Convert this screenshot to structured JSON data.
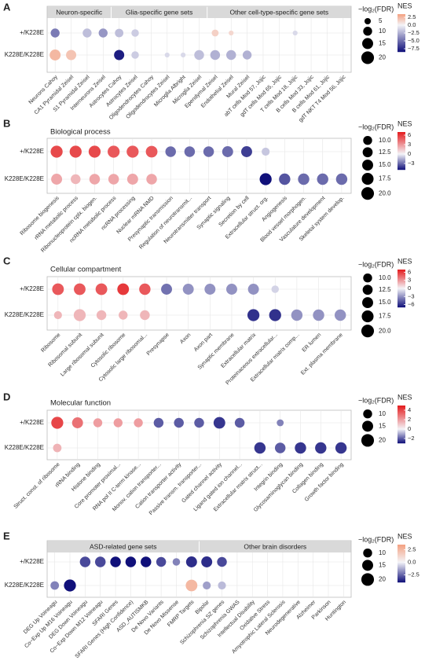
{
  "chart_data": [
    {
      "type": "dot",
      "panel": "A",
      "groups": [
        {
          "label": "Neuron-specific",
          "span": 4
        },
        {
          "label": "Glia-specific gene sets",
          "span": 6
        },
        {
          "label": "Other cell-type-specific gene sets",
          "span": 9
        }
      ],
      "rows": [
        "+/K228E",
        "K228E/K228E"
      ],
      "categories": [
        "Neurons Cahoy",
        "CA1 Pyramidal Zeisel",
        "S1 Pyramidal Zeisel",
        "Interneurons Zeisel",
        "Astrocytes Cahoy",
        "Astrocytes Zeisel",
        "Oligodendrocytes Cahoy",
        "Oligodendrocytes Zeisel",
        "Microglia Albright",
        "Microglia Zeisel",
        "Ependymal Zeisel",
        "Endothelial Zeisel",
        "Mural Zeisel",
        "abT cells Mod 57, Jojic",
        "gdT cells Mod 65, Jojic",
        "T cells Mod 18, Jojic",
        "B cells Mod 33, Jojic",
        "B cells Mod 61, Jojic",
        "gdT NKT T4 Mod 56, Jojic"
      ],
      "nes": [
        [
          -4.5,
          null,
          -2,
          -3.5,
          -2,
          -1.5,
          null,
          null,
          null,
          null,
          1.5,
          1.2,
          null,
          null,
          null,
          -1,
          null,
          null,
          null
        ],
        [
          2.5,
          2,
          null,
          null,
          -8,
          -1.5,
          null,
          -1,
          -1,
          -2,
          -2.5,
          -2.5,
          -2.5,
          null,
          null,
          null,
          null,
          null,
          null
        ]
      ],
      "size": [
        [
          10,
          null,
          10,
          10,
          9,
          7,
          null,
          null,
          null,
          null,
          6,
          3,
          null,
          null,
          null,
          3,
          null,
          null,
          null
        ],
        [
          15,
          13,
          null,
          null,
          13,
          7,
          null,
          3,
          3,
          12,
          12,
          12,
          10,
          null,
          null,
          null,
          null,
          null,
          null
        ]
      ],
      "size_title": "−log₂(FDR)",
      "size_ticks": [
        5,
        10,
        15,
        20
      ],
      "color_title": "NES",
      "clim": [
        -8.5,
        3.5
      ],
      "color_ticks": [
        {
          "value": 2.5,
          "label": "2.5"
        },
        {
          "value": 0,
          "label": "0.0"
        },
        {
          "value": -2.5,
          "label": "−2.5"
        },
        {
          "value": -5,
          "label": "−5.0"
        },
        {
          "value": -7.5,
          "label": "−7.5"
        }
      ],
      "colors": {
        "low": "#10107a",
        "mid": "#f4f4f8",
        "high": "#f4a080"
      }
    },
    {
      "type": "dot",
      "panel": "B",
      "title": "Biological process",
      "rows": [
        "+/K228E",
        "K228E/K228E"
      ],
      "categories": [
        "Ribosome biogenesis",
        "rRNA metabolic process",
        "Ribonucleoprotein cplx. biogen.",
        "ncRNA metabolic process",
        "ncRNA processing",
        "Nuclear mRNA NMD",
        "Presynaptic transmission",
        "Regulation of neurotransmit...",
        "Neurotransmitter transport",
        "Synaptic signaling",
        "Secretion by cell",
        "Extracellular struct. org.",
        "Angiogenesis",
        "Blood vessel morphogen.",
        "Vasculature development",
        "Skeletal system develop."
      ],
      "nes": [
        [
          5.5,
          5.5,
          5.5,
          5,
          5,
          5,
          -3,
          -3,
          -3,
          -3,
          -4,
          -1,
          null,
          null,
          null,
          null
        ],
        [
          2.5,
          2,
          2.5,
          2.5,
          2.5,
          2.5,
          null,
          null,
          null,
          null,
          null,
          -5,
          -3.5,
          -3,
          -3,
          -3
        ]
      ],
      "size": [
        [
          18,
          18,
          18,
          18,
          18,
          17,
          14,
          14,
          14,
          15,
          15,
          8,
          null,
          null,
          null,
          null
        ],
        [
          15,
          12,
          14,
          14,
          15,
          14,
          null,
          null,
          null,
          null,
          null,
          18,
          16,
          16,
          16,
          16
        ]
      ],
      "size_title": "−log₂(FDR)",
      "size_ticks": [
        {
          "value": 10,
          "label": "10.0"
        },
        12.5,
        {
          "value": 15,
          "label": "15.0"
        },
        17.5,
        {
          "value": 20,
          "label": "20.0"
        }
      ],
      "color_title": "NES",
      "clim": [
        -5,
        7
      ],
      "color_ticks": [
        6,
        3,
        0,
        {
          "value": -3,
          "label": "−3"
        }
      ],
      "colors": {
        "low": "#10107a",
        "mid": "#f4f4f8",
        "high": "#e41a1c"
      }
    },
    {
      "type": "dot",
      "panel": "C",
      "title": "Cellular compartment",
      "rows": [
        "+/K228E",
        "K228E/K228E"
      ],
      "categories": [
        "Ribosome",
        "Ribosomal subunit",
        "Large ribosomal subunit",
        "Cytosolic ribosome",
        "Cytosolic large ribosomal...",
        "Presynapse",
        "Axon",
        "Axon part",
        "Synaptic membrane",
        "Extracellular matrix",
        "Proteinaceous extracellular...",
        "Extracellular matrix comp...",
        "ER lumen",
        "Ext. plasma membrane"
      ],
      "nes": [
        [
          5,
          5,
          5,
          6,
          5,
          -4,
          -3,
          -3,
          -3,
          -3,
          -1,
          null,
          null,
          null
        ],
        [
          2,
          2,
          2,
          2,
          2,
          null,
          null,
          null,
          null,
          -6,
          -6,
          -3,
          -3,
          -3
        ]
      ],
      "size": [
        [
          17,
          17,
          17,
          17,
          16,
          15,
          15,
          15,
          15,
          15,
          7,
          null,
          null,
          null
        ],
        [
          8,
          18,
          12,
          10,
          12,
          null,
          null,
          null,
          null,
          18,
          18,
          16,
          16,
          16
        ]
      ],
      "size_title": "−log₂(FDR)",
      "size_ticks": [
        {
          "value": 10,
          "label": "10.0"
        },
        12.5,
        {
          "value": 15,
          "label": "15.0"
        },
        17.5,
        {
          "value": 20,
          "label": "20.0"
        }
      ],
      "color_title": "NES",
      "clim": [
        -7,
        7
      ],
      "color_ticks": [
        6,
        3,
        0,
        {
          "value": -3,
          "label": "−3"
        },
        {
          "value": -6,
          "label": "−6"
        }
      ],
      "colors": {
        "low": "#10107a",
        "mid": "#f4f4f8",
        "high": "#e41a1c"
      }
    },
    {
      "type": "dot",
      "panel": "D",
      "title": "Molecular function",
      "rows": [
        "+/K228E",
        "K228E/K228E"
      ],
      "categories": [
        "Struct. const. of ribosome",
        "rRNA binding",
        "Histone binding",
        "Core promoter proximal...",
        "RNA pol II C-term kinase...",
        "Monov. cation transporter...",
        "Cation transporter activity",
        "Passive transm. transporter...",
        "Gated channel activity",
        "Ligand gated ion channel...",
        "Extracellular matrix struct...",
        "Integrin binding",
        "Glycosaminoglycan binding",
        "Collagen binding",
        "Growth factor binding"
      ],
      "nes": [
        [
          4,
          3,
          2,
          2,
          2,
          -2,
          -2,
          -2,
          -2.5,
          -2,
          null,
          -1.5,
          null,
          null,
          null
        ],
        [
          1.5,
          null,
          null,
          null,
          null,
          null,
          null,
          null,
          null,
          null,
          -2.5,
          -2,
          -2.5,
          -2.5,
          -2.5
        ]
      ],
      "size": [
        [
          18,
          15,
          10,
          10,
          10,
          12,
          12,
          12,
          17,
          12,
          null,
          6,
          null,
          null,
          null
        ],
        [
          9,
          null,
          null,
          null,
          null,
          null,
          null,
          null,
          null,
          null,
          16,
          14,
          16,
          16,
          16
        ]
      ],
      "size_title": "−log₂(FDR)",
      "size_ticks": [
        10,
        15,
        20
      ],
      "color_title": "NES",
      "clim": [
        -3,
        5
      ],
      "color_ticks": [
        4,
        2,
        0,
        {
          "value": -2,
          "label": "−2"
        }
      ],
      "colors": {
        "low": "#10107a",
        "mid": "#f4f4f8",
        "high": "#e41a1c"
      }
    },
    {
      "type": "dot",
      "panel": "E",
      "groups": [
        {
          "label": "ASD-related gene sets",
          "span": 10
        },
        {
          "label": "Other brain disorders",
          "span": 10
        }
      ],
      "rows": [
        "+/K228E",
        "K228E/K228E"
      ],
      "categories": [
        "DEG Up Voineagu",
        "Co−Exp Up M16 Voineagu",
        "DEG Down Voineagu",
        "Co−Exp Down M12 Voineagu",
        "SFARI Genes",
        "SFARI Genes (High Confidence)",
        "ASD_AUTISMKB",
        "De Novo Variants",
        "De Novo Missense",
        "FMRP Targets",
        "Bipolar",
        "Schizophrenia SZ genes",
        "Schizophrenia GWAS",
        "Intellectual Disability",
        "Oxidative Stress",
        "Amyotrophic Lateral Sclerosis",
        "Neurodegenerative",
        "Alzheimer",
        "Parkinson",
        "Huntington"
      ],
      "nes": [
        [
          null,
          null,
          -3,
          -3,
          -4,
          -4,
          -4,
          -3,
          -2,
          -3.5,
          -3.5,
          -3,
          null,
          null,
          null,
          null,
          null,
          null,
          null,
          null
        ],
        [
          -2,
          -4.5,
          null,
          null,
          null,
          null,
          null,
          null,
          null,
          2.5,
          -1.5,
          -1,
          null,
          null,
          null,
          null,
          null,
          null,
          null,
          null
        ]
      ],
      "size": [
        [
          null,
          null,
          14,
          14,
          14,
          14,
          14,
          12,
          7,
          15,
          15,
          12,
          null,
          null,
          null,
          null,
          null,
          null,
          null,
          null
        ],
        [
          9,
          18,
          null,
          null,
          null,
          null,
          null,
          null,
          null,
          17,
          8,
          8,
          null,
          null,
          null,
          null,
          null,
          null,
          null,
          null
        ]
      ],
      "size_title": "−log₂(FDR)",
      "size_ticks": [
        10,
        15,
        20
      ],
      "color_title": "NES",
      "clim": [
        -4,
        3.5
      ],
      "color_ticks": [
        2.5,
        {
          "value": 0,
          "label": "0.0"
        },
        {
          "value": -2.5,
          "label": "−2.5"
        }
      ],
      "colors": {
        "low": "#10107a",
        "mid": "#f4f4f8",
        "high": "#f4a080"
      }
    }
  ]
}
